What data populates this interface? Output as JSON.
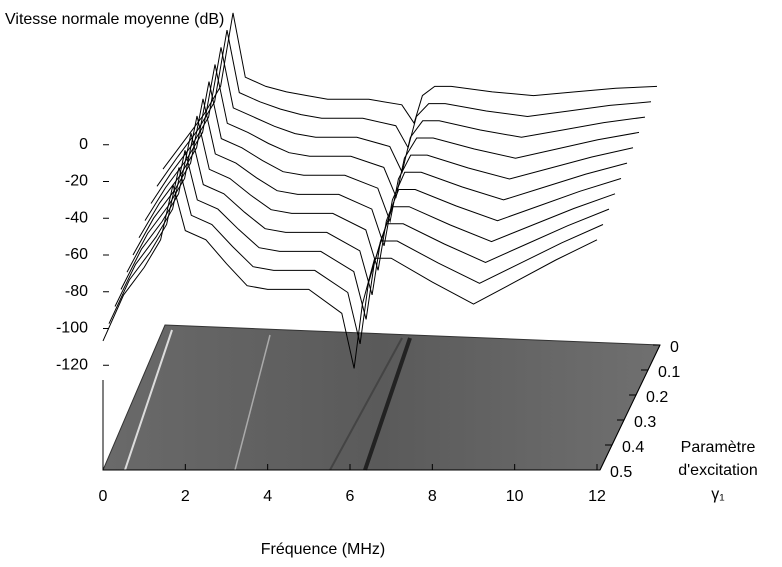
{
  "chart_data": {
    "type": "waterfall",
    "zlabel": "Vitesse normale moyenne (dB)",
    "xlabel": "Fréquence (MHz)",
    "ylabel_lines": [
      "Paramètre",
      "d'excitation",
      "γ₁"
    ],
    "xlim": [
      0,
      12
    ],
    "xticks": [
      0,
      2,
      4,
      6,
      8,
      10,
      12
    ],
    "ylim": [
      0,
      0.5
    ],
    "yticks": [
      0,
      0.1,
      0.2,
      0.3,
      0.4,
      0.5
    ],
    "zlim": [
      -177,
      57
    ],
    "zticks": [
      0,
      -20,
      -40,
      -60,
      -80,
      -100,
      -120
    ],
    "color": "#000000",
    "x": [
      0,
      0.5,
      1,
      1.4,
      1.7,
      2,
      2.5,
      3,
      3.5,
      4,
      5,
      5.8,
      6.1,
      6.3,
      6.6,
      7,
      8,
      9,
      10,
      11,
      12
    ],
    "series": [
      {
        "depth": 0,
        "values": [
          -50,
          -35,
          -20,
          -5,
          35,
          0,
          -5,
          -8,
          -10,
          -12,
          -12,
          -15,
          -25,
          -10,
          -5,
          -5,
          -8,
          -10,
          -8,
          -6,
          -5
        ]
      },
      {
        "depth": 0.05,
        "values": [
          -52,
          -36,
          -21,
          -6,
          33,
          -1,
          -6,
          -10,
          -13,
          -15,
          -15,
          -19,
          -31,
          -14,
          -7,
          -7,
          -11,
          -14,
          -11,
          -8,
          -6
        ]
      },
      {
        "depth": 0.1,
        "values": [
          -54,
          -37,
          -22,
          -7,
          31,
          -2,
          -7,
          -12,
          -16,
          -18,
          -18,
          -23,
          -37,
          -18,
          -9,
          -9,
          -14,
          -18,
          -14,
          -10,
          -7
        ]
      },
      {
        "depth": 0.15,
        "values": [
          -56,
          -38,
          -23,
          -8,
          29,
          -3,
          -8,
          -14,
          -19,
          -21,
          -21,
          -27,
          -43,
          -22,
          -11,
          -11,
          -17,
          -22,
          -17,
          -12,
          -8
        ]
      },
      {
        "depth": 0.2,
        "values": [
          -58,
          -39,
          -24,
          -9,
          27,
          -4,
          -9,
          -16,
          -22,
          -24,
          -24,
          -31,
          -49,
          -26,
          -13,
          -13,
          -20,
          -26,
          -20,
          -14,
          -9
        ]
      },
      {
        "depth": 0.25,
        "values": [
          -60,
          -40,
          -25,
          -10,
          25,
          -5,
          -10,
          -18,
          -25,
          -27,
          -27,
          -35,
          -55,
          -30,
          -15,
          -15,
          -23,
          -30,
          -23,
          -16,
          -10
        ]
      },
      {
        "depth": 0.3,
        "values": [
          -62,
          -41,
          -26,
          -11,
          23,
          -6,
          -11,
          -20,
          -28,
          -30,
          -30,
          -39,
          -61,
          -34,
          -17,
          -17,
          -26,
          -34,
          -26,
          -18,
          -11
        ]
      },
      {
        "depth": 0.35,
        "values": [
          -64,
          -42,
          -27,
          -12,
          21,
          -7,
          -12,
          -22,
          -31,
          -33,
          -33,
          -43,
          -67,
          -38,
          -19,
          -19,
          -29,
          -38,
          -29,
          -20,
          -12
        ]
      },
      {
        "depth": 0.4,
        "values": [
          -66,
          -43,
          -28,
          -13,
          19,
          -8,
          -13,
          -24,
          -34,
          -36,
          -36,
          -47,
          -73,
          -42,
          -21,
          -21,
          -32,
          -42,
          -32,
          -22,
          -13
        ]
      },
      {
        "depth": 0.45,
        "values": [
          -68,
          -44,
          -29,
          -14,
          17,
          -9,
          -14,
          -26,
          -37,
          -39,
          -39,
          -51,
          -79,
          -46,
          -23,
          -23,
          -35,
          -46,
          -35,
          -24,
          -14
        ]
      },
      {
        "depth": 0.5,
        "values": [
          -70,
          -45,
          -30,
          -15,
          15,
          -10,
          -15,
          -28,
          -40,
          -42,
          -42,
          -55,
          -85,
          -50,
          -25,
          -25,
          -38,
          -50,
          -38,
          -26,
          -15
        ]
      }
    ]
  }
}
